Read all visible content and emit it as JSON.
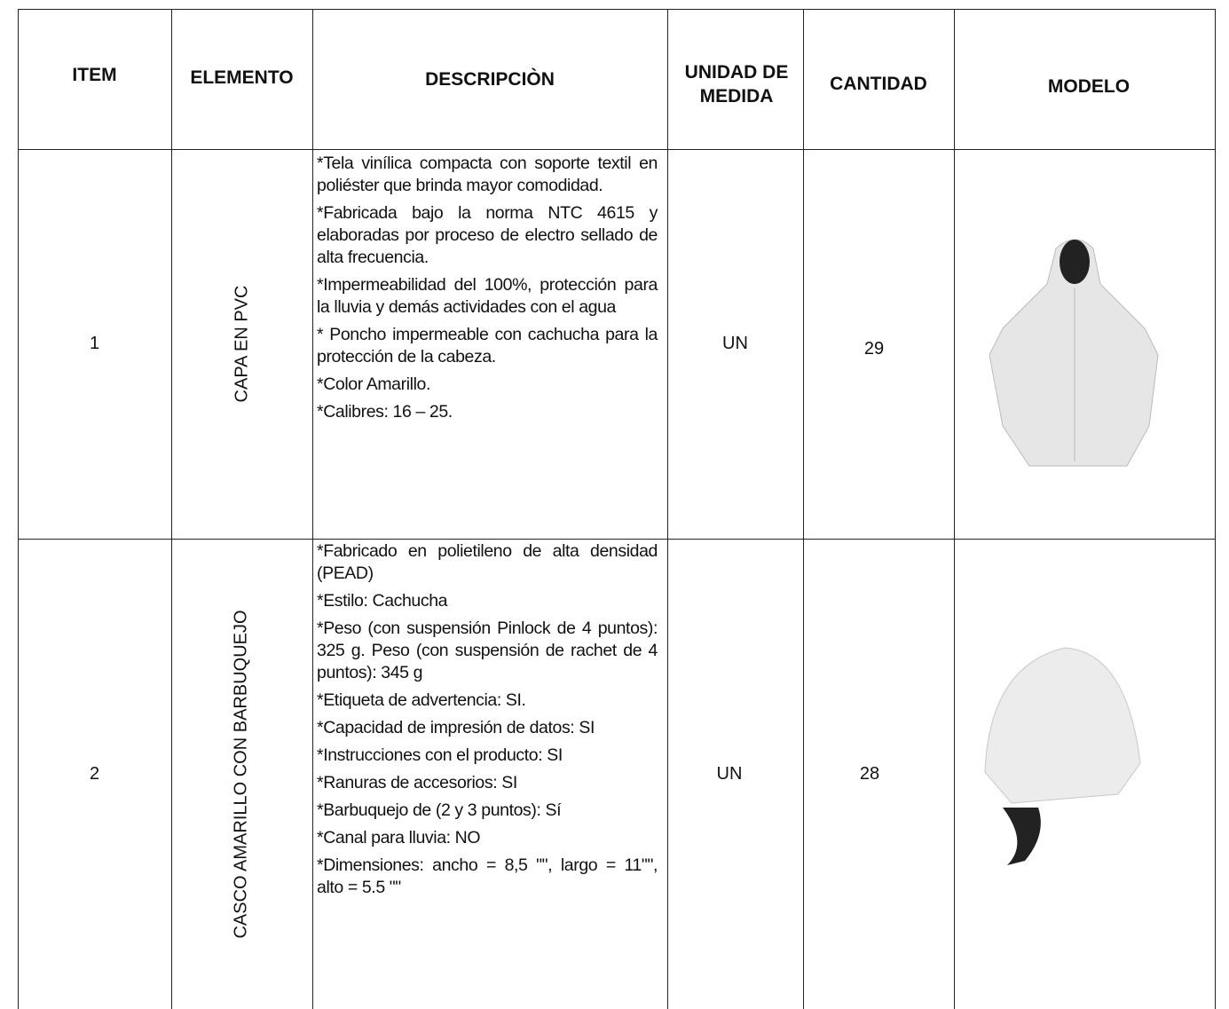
{
  "table": {
    "headers": [
      "ITEM",
      "ELEMENTO",
      "DESCRIPCIÒN",
      "UNIDAD DE MEDIDA",
      "CANTIDAD",
      "MODELO"
    ],
    "rows": [
      {
        "item": 1,
        "element": "CAPA EN PVC",
        "description": [
          "*Tela vinílica compacta con soporte textil en poliéster que brinda mayor comodidad.",
          "*Fabricada bajo la norma NTC 4615 y elaboradas por proceso de electro sellado de alta frecuencia.",
          "*Impermeabilidad del 100%, protección para la lluvia y demás actividades con el agua",
          "* Poncho impermeable con cachucha para la protección de la cabeza.",
          "*Color Amarillo.",
          "*Calibres: 16 – 25."
        ],
        "unit": "UN",
        "quantity": 29
      },
      {
        "item": 2,
        "element": "CASCO AMARILLO CON BARBUQUEJO",
        "description": [
          "*Fabricado en polietileno de alta densidad (PEAD)",
          "*Estilo: Cachucha",
          "*Peso (con suspensión Pinlock de 4 puntos): 325 g. Peso (con suspensión de rachet de 4 puntos): 345 g",
          "*Etiqueta de advertencia: SI.",
          "*Capacidad de impresión de datos: SI",
          "*Instrucciones con el producto: SI",
          "*Ranuras de accesorios: SI",
          "*Barbuquejo de (2 y 3 puntos): Sí",
          "*Canal para lluvia: NO",
          "*Dimensiones: ancho = 8,5 \"\", largo = 11\"\", alto = 5.5 \"\""
        ],
        "unit": "UN",
        "quantity": 28
      }
    ]
  }
}
